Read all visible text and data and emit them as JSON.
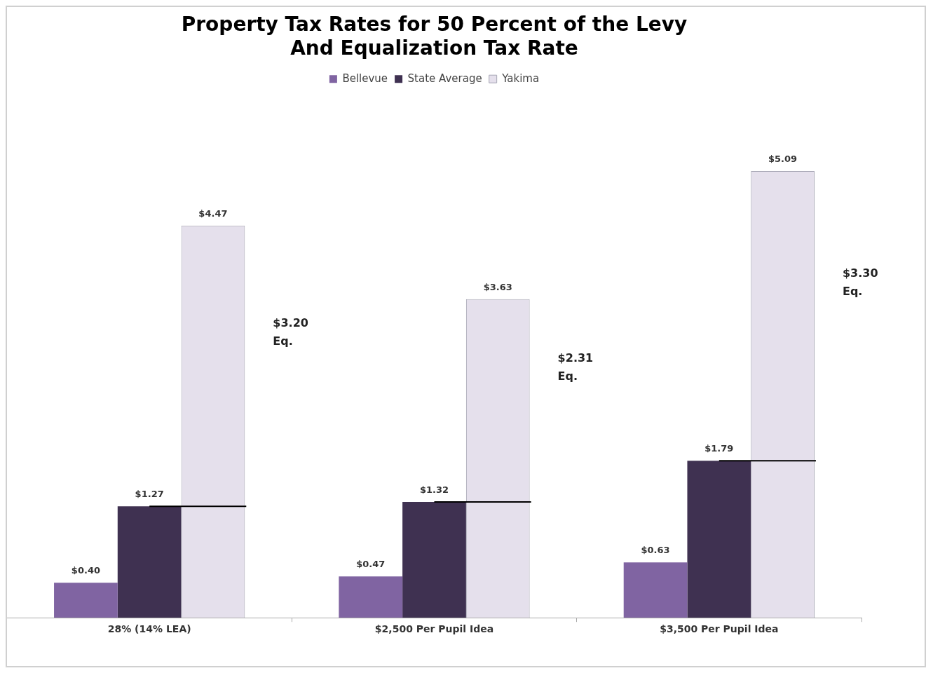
{
  "chart_data": {
    "type": "bar",
    "title": "Property Tax Rates for 50 Percent of the Levy\nAnd Equalization Tax Rate",
    "categories": [
      "28% (14% LEA)",
      "$2,500 Per Pupil Idea",
      "$3,500 Per Pupil Idea"
    ],
    "series": [
      {
        "name": "Bellevue",
        "color": "#8064a2",
        "values": [
          0.4,
          0.47,
          0.63
        ],
        "value_labels": [
          "$0.40",
          "$0.47",
          "$0.63"
        ]
      },
      {
        "name": "State Average",
        "color": "#3f3151",
        "values": [
          1.27,
          1.32,
          1.79
        ],
        "value_labels": [
          "$1.27",
          "$1.32",
          "$1.79"
        ]
      },
      {
        "name": "Yakima",
        "color": "#e5e0ec",
        "values": [
          4.47,
          3.63,
          5.09
        ],
        "value_labels": [
          "$4.47",
          "$3.63",
          "$5.09"
        ]
      }
    ],
    "annotations": [
      "$3.20\nEq.",
      "$2.31\nEq.",
      "$3.30\nEq."
    ],
    "legend": "top",
    "grid": false
  }
}
